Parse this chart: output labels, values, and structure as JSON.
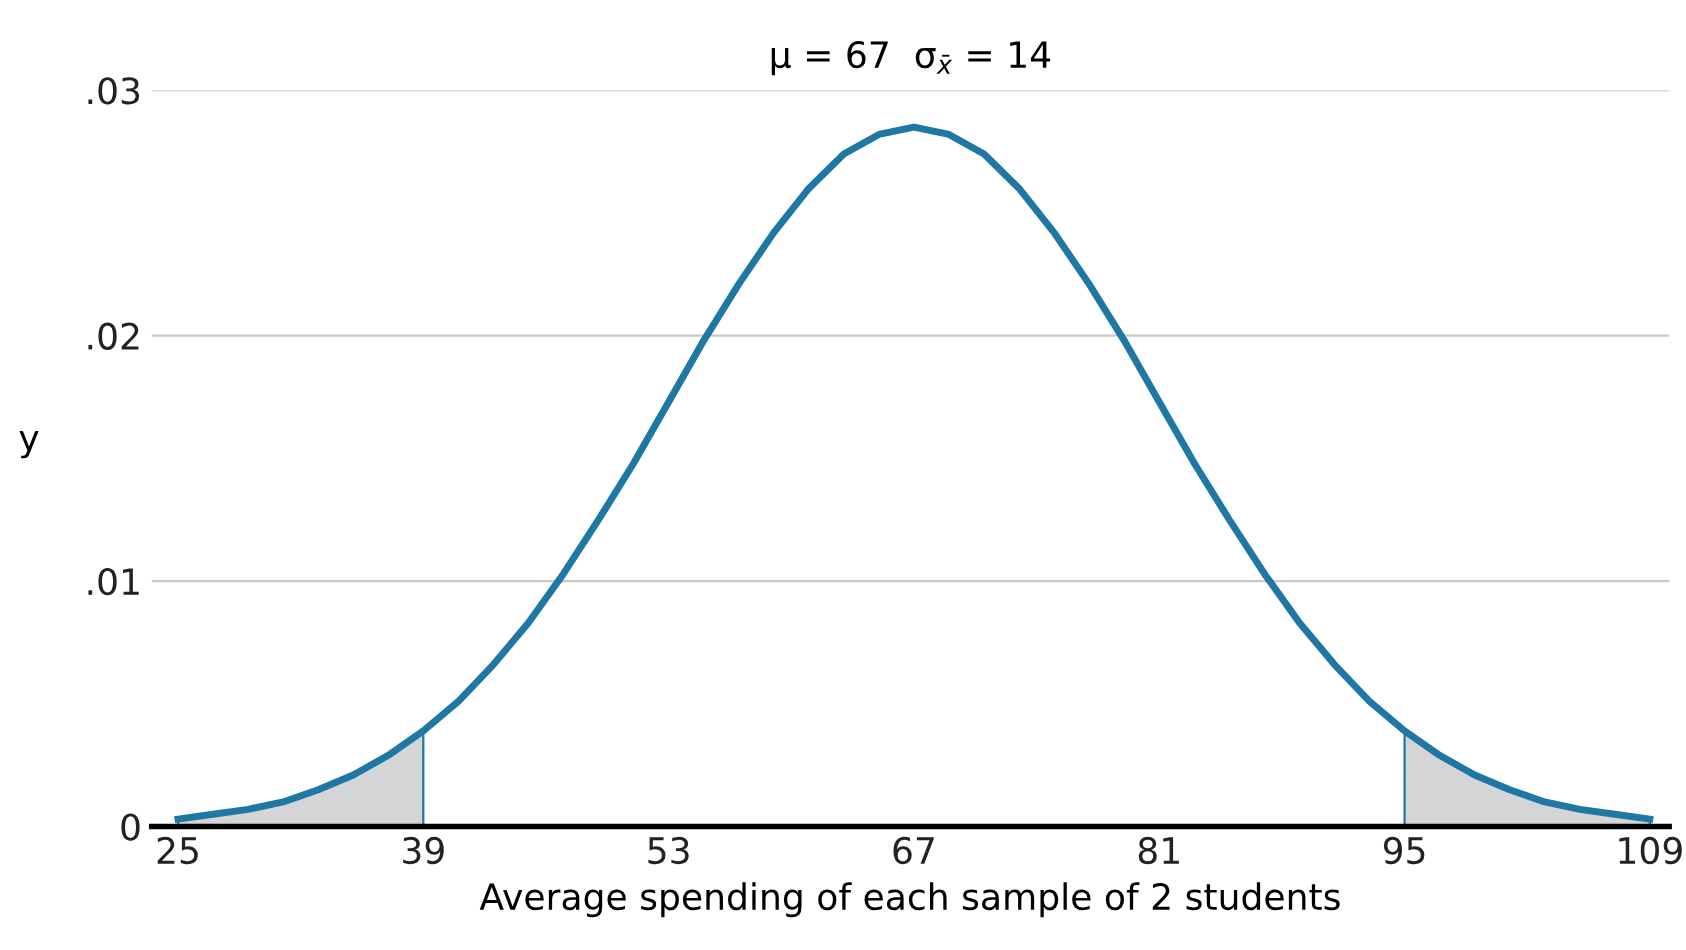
{
  "chart_data": {
    "type": "line",
    "title": "μ = 67  σ$_{x̄}$ = 14",
    "xlabel": "Average spending of each sample of 2 students",
    "ylabel": "y",
    "xlim": [
      23.5,
      110.1
    ],
    "xticks": [
      25,
      39,
      53,
      67,
      81,
      95,
      109
    ],
    "ylim": [
      0,
      0.03
    ],
    "yticks": [
      {
        "value": 0,
        "label": "0"
      },
      {
        "value": 0.01,
        "label": ".01"
      },
      {
        "value": 0.02,
        "label": ".02"
      },
      {
        "value": 0.03,
        "label": ".03"
      }
    ],
    "grid": "y",
    "series": [
      {
        "type": "area",
        "color": "#d3d5d6",
        "x": [
          25,
          27,
          29,
          31,
          33,
          35,
          37,
          39
        ],
        "values": [
          0.0003,
          0.0005,
          0.0007,
          0.001,
          0.0015,
          0.0021,
          0.0029,
          0.0039
        ]
      },
      {
        "type": "area",
        "color": "#d3d5d6",
        "x": [
          95,
          97,
          99,
          101,
          103,
          105,
          107,
          109
        ],
        "values": [
          0.0039,
          0.0029,
          0.0021,
          0.0015,
          0.001,
          0.0007,
          0.0005,
          0.0003
        ]
      },
      {
        "color": "#1f77a4",
        "x": [
          25,
          27,
          29,
          31,
          33,
          35,
          37,
          39,
          41,
          43,
          45,
          47,
          49,
          51,
          53,
          55,
          57,
          59,
          61,
          63,
          65,
          67,
          69,
          71,
          73,
          75,
          77,
          79,
          81,
          83,
          85,
          87,
          89,
          91,
          93,
          95,
          97,
          99,
          101,
          103,
          105,
          107,
          109
        ],
        "values": [
          0.0003,
          0.0005,
          0.0007,
          0.001,
          0.0015,
          0.0021,
          0.0029,
          0.0039,
          0.0051,
          0.0066,
          0.0083,
          0.0103,
          0.0125,
          0.0148,
          0.0173,
          0.0198,
          0.0221,
          0.0242,
          0.026,
          0.0274,
          0.0282,
          0.0285,
          0.0282,
          0.0274,
          0.026,
          0.0242,
          0.0221,
          0.0198,
          0.0173,
          0.0148,
          0.0125,
          0.0103,
          0.0083,
          0.0066,
          0.0051,
          0.0039,
          0.0029,
          0.0021,
          0.0015,
          0.001,
          0.0007,
          0.0005,
          0.0003
        ]
      }
    ]
  }
}
